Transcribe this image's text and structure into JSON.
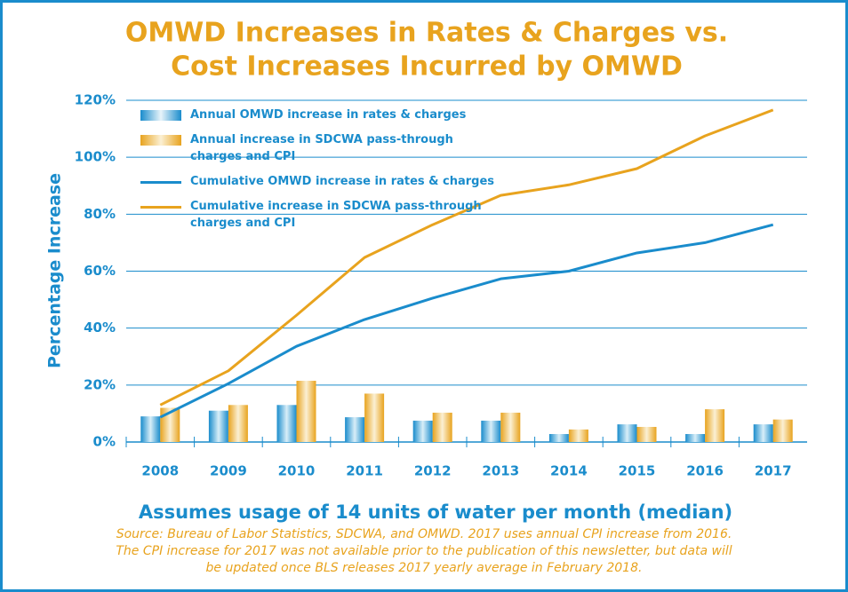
{
  "chart_data": {
    "type": "bar_line",
    "title": [
      "OMWD Increases in Rates & Charges vs.",
      "Cost Increases Incurred by OMWD"
    ],
    "y_label": "Percentage Increase",
    "subtitle": "Assumes usage of 14 units of water per month (median)",
    "source": [
      "Source: Bureau of Labor Statistics, SDCWA, and OMWD. 2017 uses annual CPI increase from 2016.",
      "The CPI increase for 2017 was not available prior to the publication of this newsletter, but data will",
      "be updated once BLS releases 2017 yearly average in February 2018."
    ],
    "categories": [
      "2008",
      "2009",
      "2010",
      "2011",
      "2012",
      "2013",
      "2014",
      "2015",
      "2016",
      "2017"
    ],
    "ylim": [
      0,
      120
    ],
    "yticks": [
      {
        "value": 0,
        "label": "0%"
      },
      {
        "value": 20,
        "label": "20%"
      },
      {
        "value": 40,
        "label": "40%"
      },
      {
        "value": 60,
        "label": "60%"
      },
      {
        "value": 80,
        "label": "80%"
      },
      {
        "value": 100,
        "label": "100%"
      },
      {
        "value": 120,
        "label": "120%"
      }
    ],
    "grid": true,
    "series": [
      {
        "name": "Annual OMWD increase in rates & charges",
        "kind": "bar",
        "color": "#1a8ccc",
        "values": [
          9,
          11,
          13,
          8.7,
          7.5,
          7.5,
          2.8,
          6.2,
          2.8,
          6.2
        ]
      },
      {
        "name": "Annual increase in SDCWA pass-through charges and CPI",
        "kind": "bar",
        "color": "#e8a31e",
        "values": [
          12,
          13,
          21.5,
          17,
          10.3,
          10.3,
          4.4,
          5.3,
          11.5,
          7.9
        ]
      },
      {
        "name": "Cumulative OMWD increase in rates & charges",
        "kind": "line",
        "color": "#1a8ccc",
        "values": [
          8.7,
          20.5,
          33.6,
          43,
          50.5,
          57.3,
          60,
          66.4,
          70,
          76.3
        ]
      },
      {
        "name": "Cumulative increase in SDCWA pass-through charges and CPI",
        "kind": "line",
        "color": "#e8a31e",
        "values": [
          13,
          25,
          44.5,
          64.8,
          76.3,
          86.6,
          90.3,
          96,
          107.5,
          116.6
        ]
      }
    ]
  }
}
